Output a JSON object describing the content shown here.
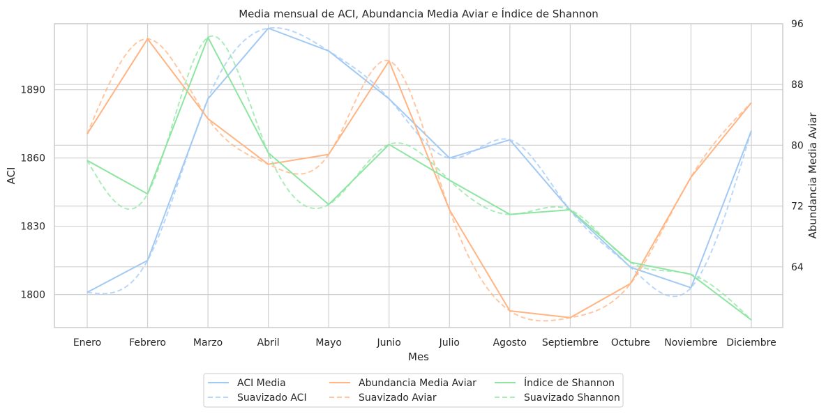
{
  "chart_data": {
    "type": "line",
    "title": "Media mensual de ACI, Abundancia Media Aviar e Índice de Shannon",
    "xlabel": "Mes",
    "ylabel_left": "ACI",
    "ylabel_right": "Abundancia Media Aviar",
    "categories": [
      "Enero",
      "Febrero",
      "Marzo",
      "Abril",
      "Mayo",
      "Junio",
      "Julio",
      "Agosto",
      "Septiembre",
      "Octubre",
      "Noviembre",
      "Diciembre"
    ],
    "ylim_left": [
      1785.5,
      1919
    ],
    "ylim_right": [
      56,
      96
    ],
    "yticks_left": [
      1800,
      1830,
      1860,
      1890
    ],
    "yticks_right": [
      64,
      72,
      80,
      88,
      96
    ],
    "grid": true,
    "legend_position": "bottom-center",
    "series": [
      {
        "name": "ACI Media",
        "axis": "left",
        "style": "solid",
        "color": "#a1c9f4",
        "values": [
          1801,
          1815,
          1886,
          1917,
          1907,
          1886,
          1860,
          1868,
          1837,
          1812,
          1803,
          1872
        ]
      },
      {
        "name": "Suavizado ACI",
        "axis": "left",
        "style": "dashed",
        "color": "#a1c9f4",
        "smoothed_from": "ACI Media"
      },
      {
        "name": "Abundancia Media Aviar",
        "axis": "right",
        "style": "solid",
        "color": "#ffb482",
        "values": [
          81.5,
          94.0,
          83.5,
          77.5,
          78.8,
          91.1,
          71.5,
          58.2,
          57.3,
          61.8,
          75.8,
          85.6
        ]
      },
      {
        "name": "Suavizado Aviar",
        "axis": "right",
        "style": "dashed",
        "color": "#ffb482",
        "smoothed_from": "Abundancia Media Aviar"
      },
      {
        "name": "Índice de Shannon",
        "axis": "right",
        "style": "solid",
        "color": "#8de5a1",
        "values": [
          78.0,
          73.6,
          94.2,
          79.0,
          72.2,
          80.1,
          75.4,
          70.9,
          71.5,
          64.6,
          63.0,
          57.0
        ]
      },
      {
        "name": "Suavizado Shannon",
        "axis": "right",
        "style": "dashed",
        "color": "#8de5a1",
        "smoothed_from": "Índice de Shannon"
      }
    ]
  }
}
